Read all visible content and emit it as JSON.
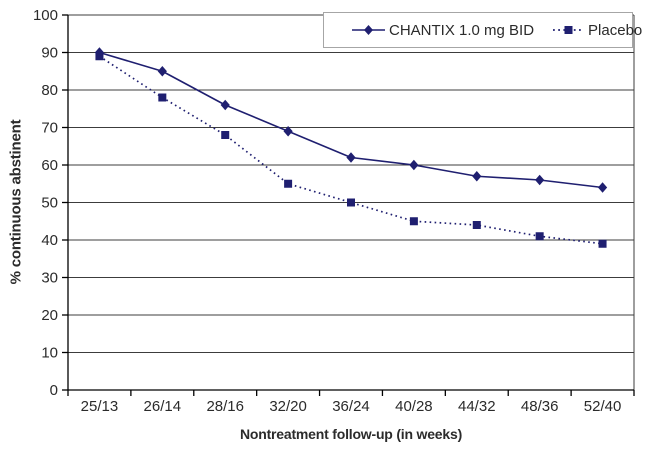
{
  "chart_data": {
    "type": "line",
    "title": "",
    "categories": [
      "25/13",
      "26/14",
      "28/16",
      "32/20",
      "36/24",
      "40/28",
      "44/32",
      "48/36",
      "52/40"
    ],
    "series": [
      {
        "name": "CHANTIX 1.0 mg BID",
        "marker": "diamond",
        "line_style": "solid",
        "values": [
          90,
          85,
          76,
          69,
          62,
          60,
          57,
          56,
          54
        ]
      },
      {
        "name": "Placebo",
        "marker": "square",
        "line_style": "dotted",
        "values": [
          89,
          78,
          68,
          55,
          50,
          45,
          44,
          41,
          39
        ]
      }
    ],
    "xlabel": "Nontreatment follow-up (in weeks)",
    "ylabel": "% continuous abstinent",
    "ylim": [
      0,
      100
    ],
    "ytick_step": 10,
    "grid": "horizontal",
    "legend_position": "top-right-inside",
    "colors": {
      "series": "#1f1f70",
      "axis": "#000000",
      "grid": "#3c3c3c",
      "text": "#2b2b2b",
      "legend_border": "#a6a6a6",
      "background": "#ffffff"
    }
  }
}
